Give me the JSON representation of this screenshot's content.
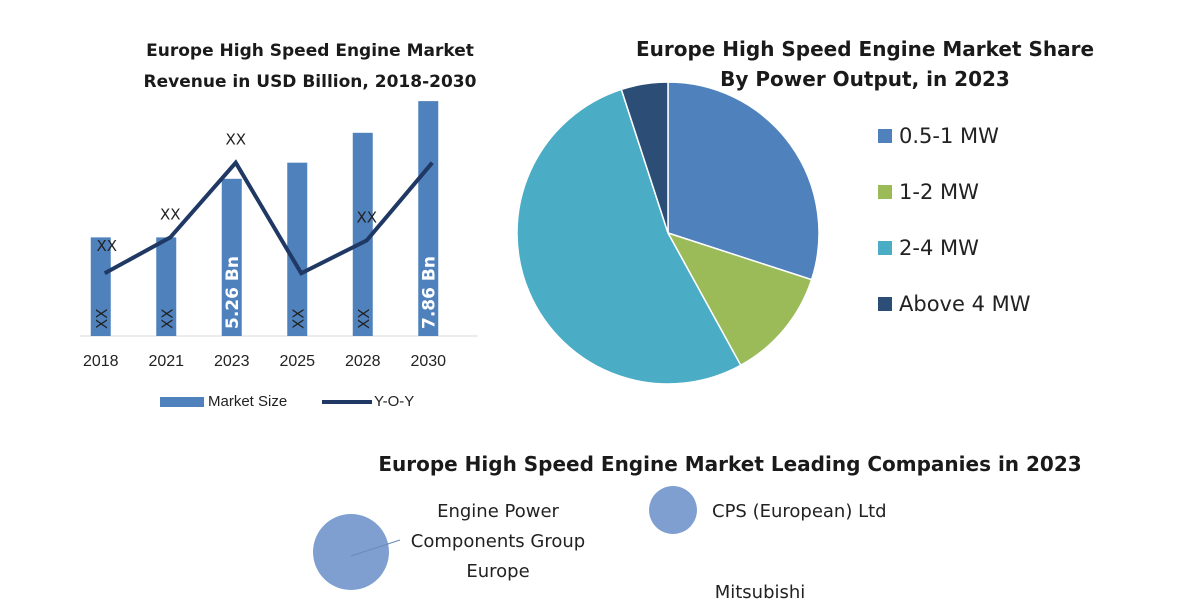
{
  "bar_chart": {
    "title": "Europe High Speed Engine Market Revenue in USD Billion, 2018-2030",
    "legend": {
      "bar": "Market Size",
      "line": "Y-O-Y"
    }
  },
  "pie_chart": {
    "title_line1": "Europe High Speed Engine Market Share",
    "title_line2": "By Power Output, in 2023"
  },
  "companies": {
    "title": "Europe High Speed Engine Market Leading Companies in 2023",
    "items": [
      {
        "label_lines": [
          "Engine Power",
          "Components Group",
          "Europe"
        ]
      },
      {
        "label_lines": [
          "CPS (European) Ltd"
        ]
      },
      {
        "label_lines": [
          "Mitsubishi"
        ]
      }
    ]
  },
  "colors": {
    "bar": "#4f81bd",
    "line": "#1f3864",
    "p1": "#4f81bd",
    "p2": "#9bbb59",
    "p3": "#4bacc6",
    "p4": "#2c4d75",
    "bubble": "#7f9fd0"
  },
  "chart_data": [
    {
      "type": "bar",
      "title": "Europe High Speed Engine Market Revenue in USD Billion, 2018-2030",
      "categories": [
        "2018",
        "2021",
        "2023",
        "2025",
        "2028",
        "2030"
      ],
      "series": [
        {
          "name": "Market Size",
          "type": "bar",
          "values": [
            3.3,
            3.3,
            5.26,
            5.8,
            6.8,
            7.86
          ],
          "labels": [
            "XX",
            "XX",
            "5.26 Bn",
            "XX",
            "XX",
            "7.86 Bn"
          ]
        },
        {
          "name": "Y-O-Y",
          "type": "line",
          "values": [
            2.1,
            3.3,
            5.8,
            2.1,
            3.2,
            5.8
          ],
          "labels": [
            "XX",
            "XX",
            "XX",
            "",
            "XX",
            ""
          ]
        }
      ],
      "ylim": [
        0,
        8.5
      ]
    },
    {
      "type": "pie",
      "title": "Europe High Speed Engine Market Share By Power Output, in 2023",
      "labels": [
        "0.5-1 MW",
        "1-2 MW",
        "2-4 MW",
        "Above 4 MW"
      ],
      "values": [
        30,
        12,
        53,
        5
      ]
    }
  ]
}
